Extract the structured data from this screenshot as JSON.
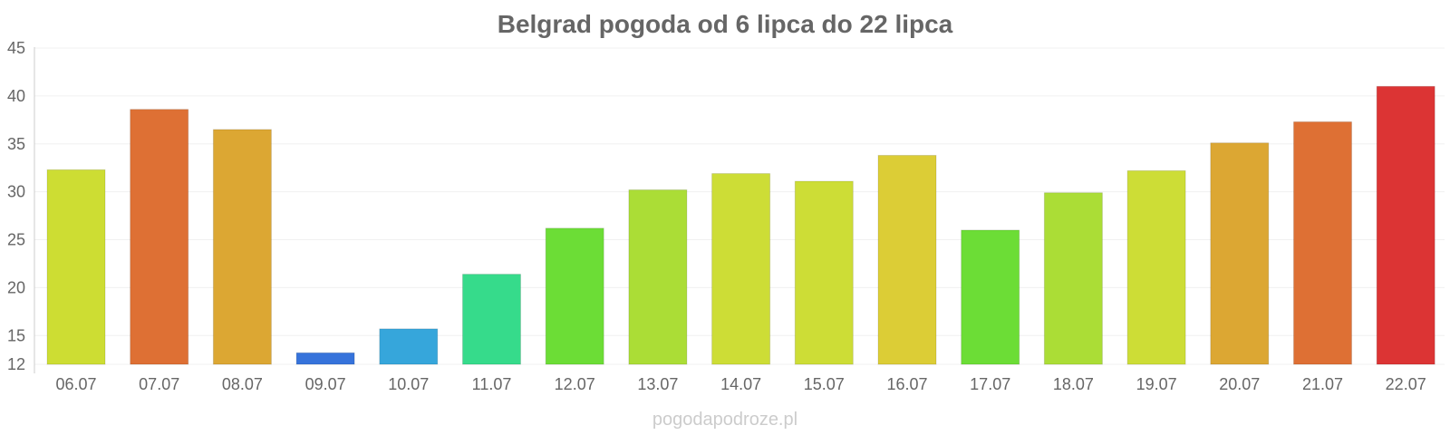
{
  "chart_data": {
    "type": "bar",
    "title": "Belgrad pogoda od 6 lipca do 22 lipca",
    "xlabel": "",
    "ylabel": "",
    "categories": [
      "06.07",
      "07.07",
      "08.07",
      "09.07",
      "10.07",
      "11.07",
      "12.07",
      "13.07",
      "14.07",
      "15.07",
      "16.07",
      "17.07",
      "18.07",
      "19.07",
      "20.07",
      "21.07",
      "22.07"
    ],
    "values": [
      32.3,
      38.6,
      36.5,
      13.2,
      15.7,
      21.4,
      26.2,
      30.2,
      31.9,
      31.1,
      33.8,
      26.0,
      29.9,
      32.2,
      35.1,
      37.3,
      41.0
    ],
    "colors": [
      "#cddd33",
      "#de7034",
      "#dca733",
      "#3673db",
      "#36a6db",
      "#36db8b",
      "#6cdd36",
      "#abdd36",
      "#cddd36",
      "#cddd36",
      "#dccd36",
      "#6cdd36",
      "#abdd36",
      "#cddd36",
      "#dca733",
      "#de7034",
      "#dc3434"
    ],
    "ylim": [
      12,
      45
    ],
    "yticks": [
      "12",
      "15",
      "20",
      "25",
      "30",
      "35",
      "40",
      "45"
    ],
    "grid": true,
    "legend": "none"
  },
  "watermark": "pogodapodroze.pl"
}
